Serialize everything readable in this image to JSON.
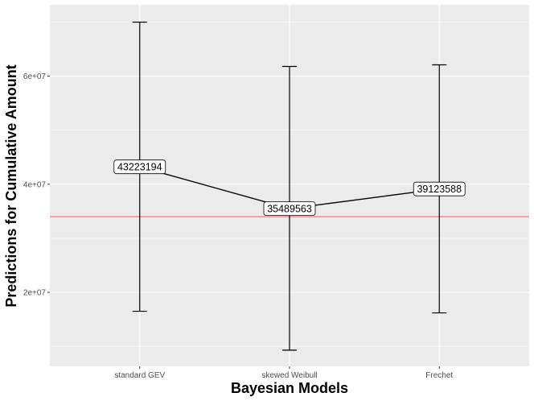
{
  "chart_data": {
    "type": "line",
    "xlabel": "Bayesian Models",
    "ylabel": "Predictions for Cumulative Amount",
    "categories": [
      "standard GEV",
      "skewed Weibull",
      "Frechet"
    ],
    "values": [
      43223194,
      35489563,
      39123588
    ],
    "value_labels": [
      "43223194",
      "35489563",
      "39123588"
    ],
    "error_bars": {
      "lower": [
        16500000,
        9300000,
        16200000
      ],
      "upper": [
        70000000,
        61800000,
        62100000
      ]
    },
    "reference_line": {
      "value": 34000000,
      "color": "#F8766D"
    },
    "ylim": [
      6300000,
      73200000
    ],
    "yticks": [
      20000000,
      40000000,
      60000000
    ],
    "ytick_labels": [
      "2e+07",
      "4e+07",
      "6e+07"
    ],
    "grid": true,
    "colors": {
      "panel": "#EBEBEB",
      "grid": "#FFFFFF",
      "line": "#000000"
    }
  }
}
